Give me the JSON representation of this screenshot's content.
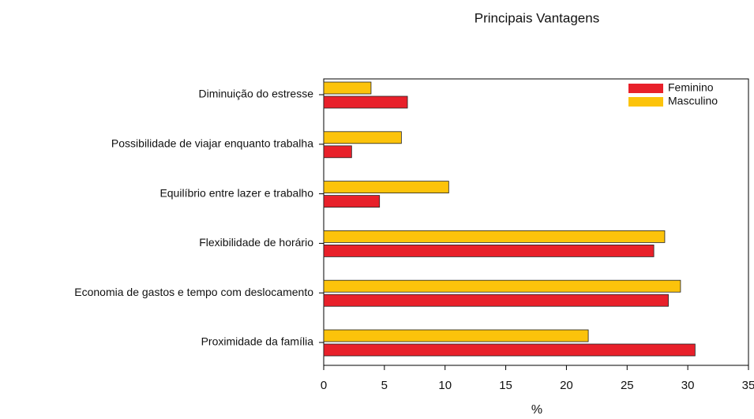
{
  "chart_data": {
    "type": "barh",
    "title": "Principais Vantagens",
    "x_label": "%",
    "categories": [
      "Diminuição do estresse",
      "Possibilidade de viajar enquanto trabalha",
      "Equilíbrio entre lazer e trabalho",
      "Flexibilidade de horário",
      "Economia de gastos e tempo com deslocamento",
      "Proximidade da família"
    ],
    "series": [
      {
        "name": "Feminino",
        "color": "#e8202a",
        "values": [
          6.9,
          2.3,
          4.6,
          27.2,
          28.4,
          30.6
        ]
      },
      {
        "name": "Masculino",
        "color": "#fcc30b",
        "values": [
          3.9,
          6.4,
          10.3,
          28.1,
          29.4,
          21.8
        ]
      }
    ],
    "xlim": [
      0,
      35
    ],
    "xticks": [
      0,
      5,
      10,
      15,
      20,
      25,
      30,
      35
    ],
    "legend": "upper right"
  }
}
